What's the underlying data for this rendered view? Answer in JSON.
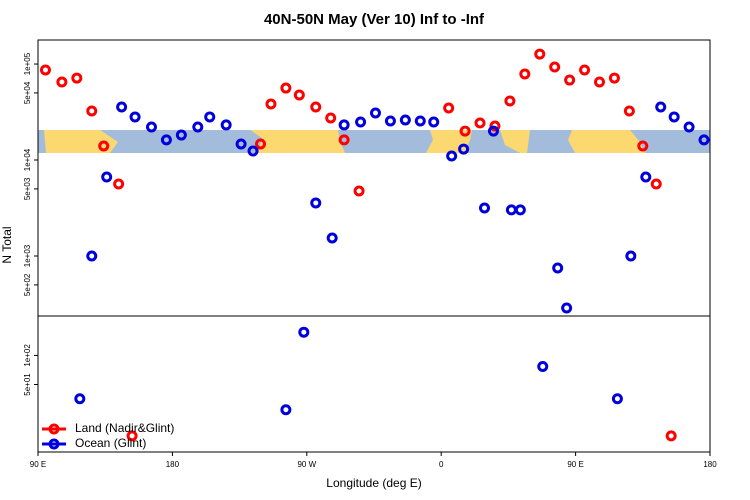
{
  "chart_data": [
    {
      "type": "scatter",
      "title": "40N-50N May (Ver 10)   Inf to -Inf",
      "ylabel": "N Total",
      "ylog": true,
      "ylim": [
        237,
        178000
      ],
      "yticks": [
        {
          "value": 100000,
          "label": "1e+05"
        },
        {
          "value": 50000,
          "label": "5e+04"
        },
        {
          "value": 10000,
          "label": "1e+04"
        },
        {
          "value": 5000,
          "label": "5e+03"
        },
        {
          "value": 1000,
          "label": "1e+03"
        },
        {
          "value": 500,
          "label": "5e+02"
        }
      ],
      "xlim": [
        90,
        540
      ],
      "series": [
        {
          "color": "#ff0000",
          "x": [
            95,
            106,
            116,
            126,
            134,
            144,
            239,
            246,
            256,
            265,
            276,
            286,
            295,
            305,
            365,
            376,
            386,
            396,
            406,
            416,
            426,
            436,
            446,
            456,
            466,
            476,
            486,
            495,
            504
          ],
          "values": [
            86600,
            65000,
            71400,
            32400,
            14000,
            5620,
            14700,
            38300,
            56200,
            47600,
            35700,
            27400,
            16200,
            4750,
            34800,
            20000,
            24300,
            22600,
            41200,
            78700,
            127000,
            93100,
            68100,
            86600,
            65000,
            71400,
            32400,
            14000,
            5620
          ]
        },
        {
          "color": "#0000dd",
          "x": [
            126,
            136,
            146,
            155,
            166,
            176,
            186,
            197,
            205,
            216,
            226,
            234,
            276,
            287,
            295,
            306,
            316,
            326,
            336,
            346,
            355,
            367,
            375,
            389,
            395,
            407,
            413,
            438,
            444,
            487,
            497,
            507,
            516,
            526,
            536
          ],
          "values": [
            1000,
            6650,
            35700,
            28100,
            22100,
            16200,
            18200,
            22100,
            28100,
            23200,
            14700,
            12400,
            3570,
            1540,
            23200,
            24900,
            30900,
            25500,
            26100,
            25500,
            24900,
            11000,
            13000,
            3160,
            20000,
            3020,
            3020,
            750,
            287,
            1000,
            6650,
            35700,
            28100,
            22100,
            16200
          ]
        }
      ]
    },
    {
      "type": "scatter",
      "ylog": true,
      "xlabel": "Longitude (deg E)",
      "legend": "lower left",
      "ylim": [
        10,
        256
      ],
      "yticks": [
        {
          "value": 100,
          "label": "1e+02"
        },
        {
          "value": 50,
          "label": "5e+01"
        }
      ],
      "xlim": [
        90,
        540
      ],
      "xticks": [
        {
          "value": 90,
          "label": "90 E"
        },
        {
          "value": 180,
          "label": "180"
        },
        {
          "value": 270,
          "label": "90 W"
        },
        {
          "value": 360,
          "label": "0"
        },
        {
          "value": 450,
          "label": "90 E"
        },
        {
          "value": 540,
          "label": "180"
        }
      ],
      "series": [
        {
          "name": "Land (Nadir&Glint)",
          "color": "#ff0000",
          "x": [
            153,
            514
          ],
          "values": [
            14.7,
            14.7
          ]
        },
        {
          "name": "Ocean (Glint)",
          "color": "#0000dd",
          "x": [
            118,
            256,
            268,
            428,
            478
          ],
          "values": [
            35.6,
            27.4,
            174,
            76.8,
            35.6
          ]
        }
      ]
    }
  ]
}
